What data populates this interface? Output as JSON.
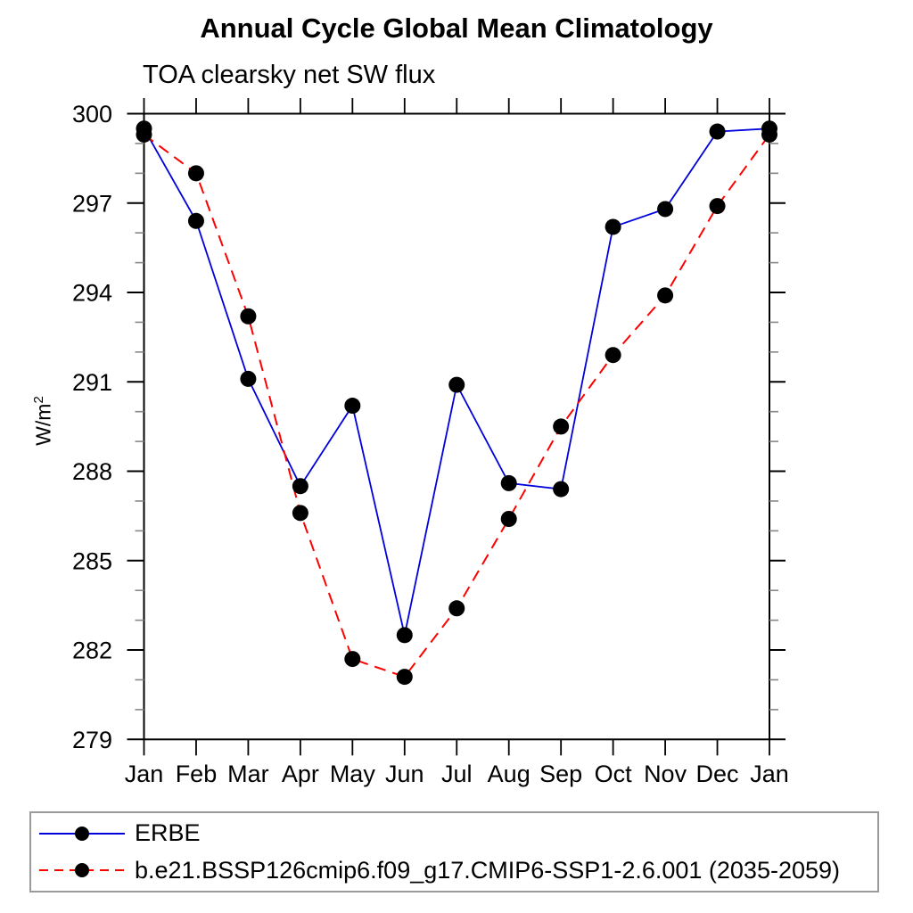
{
  "chart_data": {
    "type": "line",
    "title": "Annual Cycle Global Mean Climatology",
    "subtitle": "TOA clearsky net SW flux",
    "ylabel": {
      "base": "W/m",
      "exp": "2"
    },
    "x_categories": [
      "Jan",
      "Feb",
      "Mar",
      "Apr",
      "May",
      "Jun",
      "Jul",
      "Aug",
      "Sep",
      "Oct",
      "Nov",
      "Dec",
      "Jan"
    ],
    "ylim": [
      279,
      300
    ],
    "yticks": [
      279,
      282,
      285,
      288,
      291,
      294,
      297,
      300
    ],
    "ytick_minor_step": 1,
    "grid": false,
    "frame": "box with outward ticks on all four sides",
    "legend_position": "boxed legend below plot, left-aligned",
    "series": [
      {
        "name": "ERBE",
        "color": "#0000dd",
        "line_style": "solid",
        "marker": "filled-circle",
        "marker_color": "#000000",
        "values": [
          299.5,
          296.4,
          291.1,
          287.5,
          290.2,
          282.5,
          290.9,
          287.6,
          287.4,
          296.2,
          296.8,
          299.4,
          299.5
        ]
      },
      {
        "name": "b.e21.BSSP126cmip6.f09_g17.CMIP6-SSP1-2.6.001 (2035-2059)",
        "color": "#ff0000",
        "line_style": "dashed",
        "marker": "filled-circle",
        "marker_color": "#000000",
        "values": [
          299.3,
          298.0,
          293.2,
          286.6,
          281.7,
          281.1,
          283.4,
          286.4,
          289.5,
          291.9,
          293.9,
          296.9,
          299.3
        ]
      }
    ]
  }
}
